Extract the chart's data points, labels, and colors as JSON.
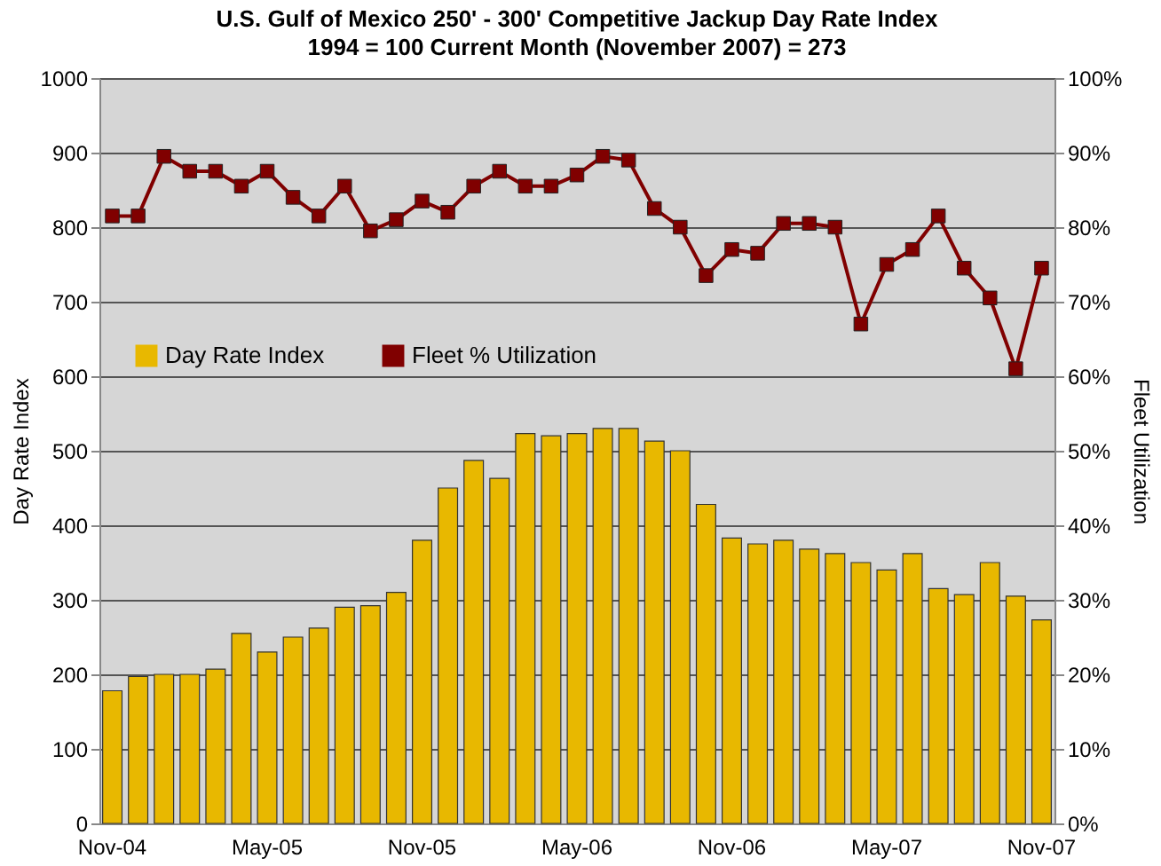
{
  "chart_data": {
    "type": "bar",
    "title": "U.S. Gulf of Mexico 250' - 300' Competitive Jackup Day Rate Index",
    "subtitle": "1994 = 100            Current Month (November 2007) = 273",
    "ylabel": "Day Rate Index",
    "y2label": "Fleet Utilization",
    "categories": [
      "Nov-04",
      null,
      null,
      null,
      null,
      null,
      "May-05",
      null,
      null,
      null,
      null,
      null,
      "Nov-05",
      null,
      null,
      null,
      null,
      null,
      "May-06",
      null,
      null,
      null,
      null,
      null,
      "Nov-06",
      null,
      null,
      null,
      null,
      null,
      "May-07",
      null,
      null,
      null,
      null,
      null,
      "Nov-07"
    ],
    "series": [
      {
        "name": "Day Rate Index",
        "color": "#e8b800",
        "values": [
          178,
          197,
          200,
          200,
          207,
          255,
          230,
          250,
          262,
          290,
          292,
          310,
          380,
          450,
          487,
          463,
          523,
          520,
          523,
          530,
          530,
          513,
          500,
          428,
          383,
          375,
          380,
          368,
          362,
          350,
          340,
          362,
          315,
          307,
          350,
          305,
          273
        ]
      },
      {
        "name": "Fleet % Utilization",
        "type": "line",
        "axis": "y2",
        "color": "#800000",
        "marker": "square",
        "values": [
          81.5,
          81.5,
          89.5,
          87.5,
          87.5,
          85.5,
          87.5,
          84,
          81.5,
          85.5,
          79.5,
          81,
          83.5,
          82,
          85.5,
          87.5,
          85.5,
          85.5,
          87,
          89.5,
          89,
          82.5,
          80,
          73.5,
          77,
          76.5,
          80.5,
          80.5,
          80,
          67,
          75,
          77,
          81.5,
          74.5,
          70.5,
          61,
          74.5
        ]
      }
    ],
    "ylim": [
      0,
      1000
    ],
    "yticks": [
      0,
      100,
      200,
      300,
      400,
      500,
      600,
      700,
      800,
      900,
      1000
    ],
    "y2lim": [
      0,
      100
    ],
    "y2ticks": [
      {
        "value": 0,
        "label": "0%"
      },
      {
        "value": 10,
        "label": "10%"
      },
      {
        "value": 20,
        "label": "20%"
      },
      {
        "value": 30,
        "label": "30%"
      },
      {
        "value": 40,
        "label": "40%"
      },
      {
        "value": 50,
        "label": "50%"
      },
      {
        "value": 60,
        "label": "60%"
      },
      {
        "value": 70,
        "label": "70%"
      },
      {
        "value": 80,
        "label": "80%"
      },
      {
        "value": 90,
        "label": "90%"
      },
      {
        "value": 100,
        "label": "100%"
      }
    ],
    "grid": "y",
    "legend": "left"
  }
}
